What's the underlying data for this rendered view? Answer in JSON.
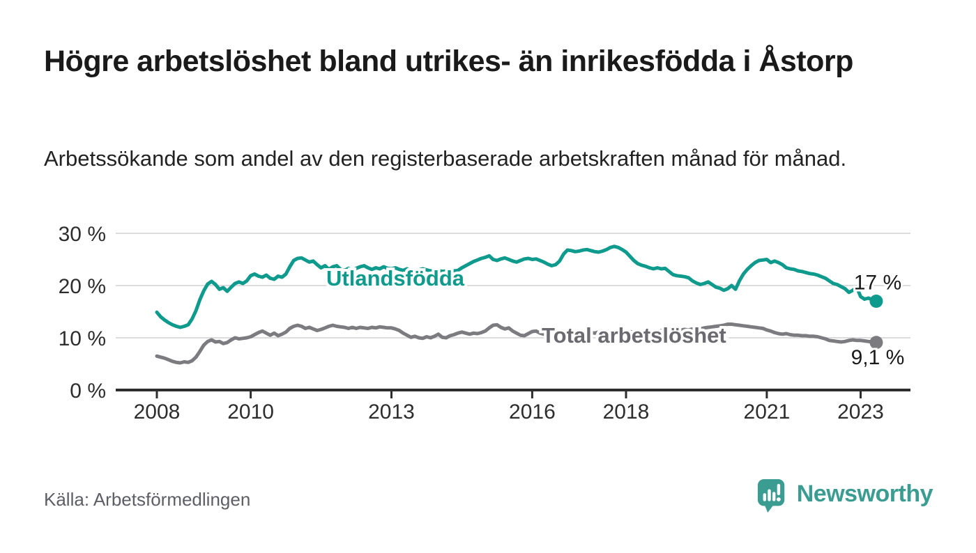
{
  "page": {
    "title": "Högre arbetslöshet bland utrikes- än inrikesfödda i Åstorp",
    "subtitle": "Arbetssökande som andel av den registerbaserade arbetskraften månad för månad.",
    "source": "Källa: Arbetsförmedlingen",
    "brand": "Newsworthy"
  },
  "colors": {
    "teal_series": "#0e9a8c",
    "gray_series": "#7b7b80",
    "gray_label": "#6a6a70",
    "value_label": "#1a1a1a",
    "axis_text": "#2d2d2d",
    "grid_line": "#dcdcdc",
    "axis_line": "#2e2e2e",
    "source_text": "#5d5e66",
    "logo_teal": "#3b9c92",
    "background": "#ffffff"
  },
  "chart_data": {
    "type": "line",
    "unit": "%",
    "x_start": {
      "year": 2008,
      "month": 1
    },
    "x_step_months": 1,
    "x_tick_years": [
      2008,
      2010,
      2013,
      2016,
      2018,
      2021,
      2023
    ],
    "y_ticks": [
      0,
      10,
      20,
      30
    ],
    "y_tick_suffix": " %",
    "ylim": [
      0,
      30
    ],
    "grid": "horizontal",
    "legend_position": "inline-labels",
    "series": [
      {
        "name": "Utlandsfödda",
        "color": "#0e9a8c",
        "end_label": "17 %",
        "end_value": 17.0,
        "values": [
          14.9,
          14.0,
          13.4,
          12.9,
          12.5,
          12.2,
          12.0,
          12.2,
          12.5,
          13.6,
          15.2,
          17.3,
          19.0,
          20.3,
          20.8,
          20.2,
          19.3,
          19.6,
          18.9,
          19.7,
          20.4,
          20.7,
          20.4,
          20.9,
          21.9,
          22.2,
          21.8,
          21.6,
          22.0,
          21.4,
          21.2,
          21.8,
          21.6,
          22.2,
          23.6,
          24.8,
          25.2,
          25.3,
          24.9,
          24.5,
          24.7,
          24.0,
          23.4,
          23.8,
          23.1,
          23.6,
          23.8,
          23.1,
          22.9,
          23.3,
          22.9,
          23.3,
          23.6,
          23.8,
          23.4,
          23.1,
          23.4,
          23.2,
          23.6,
          23.3,
          23.2,
          23.4,
          23.1,
          22.9,
          23.2,
          23.0,
          22.8,
          23.0,
          23.2,
          23.0,
          22.8,
          22.9,
          22.9,
          22.7,
          22.8,
          22.6,
          22.8,
          22.9,
          23.4,
          23.8,
          24.2,
          24.6,
          24.9,
          25.2,
          25.4,
          25.7,
          25.0,
          24.8,
          25.1,
          25.3,
          25.0,
          24.7,
          24.5,
          24.8,
          25.1,
          25.2,
          25.0,
          25.1,
          24.8,
          24.5,
          24.1,
          23.8,
          24.0,
          24.7,
          26.0,
          26.8,
          26.7,
          26.5,
          26.6,
          26.8,
          26.9,
          26.7,
          26.5,
          26.4,
          26.6,
          26.9,
          27.3,
          27.5,
          27.3,
          26.9,
          26.4,
          25.6,
          24.8,
          24.2,
          23.9,
          23.7,
          23.4,
          23.2,
          23.4,
          23.2,
          23.3,
          22.7,
          22.1,
          21.9,
          21.8,
          21.7,
          21.5,
          20.9,
          20.5,
          20.2,
          20.4,
          20.7,
          20.2,
          19.7,
          19.5,
          19.1,
          19.4,
          20.0,
          19.3,
          20.9,
          22.2,
          23.1,
          23.8,
          24.4,
          24.8,
          24.9,
          25.0,
          24.4,
          24.7,
          24.4,
          24.0,
          23.4,
          23.2,
          23.1,
          22.8,
          22.7,
          22.5,
          22.3,
          22.2,
          22.0,
          21.7,
          21.4,
          20.9,
          20.4,
          20.2,
          19.8,
          19.4,
          18.7,
          19.1,
          19.7,
          17.9,
          17.4,
          17.6,
          17.3,
          17.0
        ]
      },
      {
        "name": "Total arbetslöshet",
        "color": "#7b7b80",
        "end_label": "9,1 %",
        "end_value": 9.1,
        "values": [
          6.5,
          6.3,
          6.1,
          5.8,
          5.5,
          5.3,
          5.2,
          5.4,
          5.3,
          5.6,
          6.3,
          7.4,
          8.6,
          9.3,
          9.6,
          9.2,
          9.3,
          8.9,
          9.1,
          9.6,
          10.0,
          9.8,
          9.9,
          10.0,
          10.2,
          10.6,
          11.0,
          11.3,
          10.9,
          10.5,
          10.9,
          10.4,
          10.7,
          11.1,
          11.8,
          12.2,
          12.4,
          12.2,
          11.8,
          12.0,
          11.7,
          11.4,
          11.6,
          11.9,
          12.2,
          12.4,
          12.2,
          12.1,
          12.0,
          11.8,
          12.0,
          11.8,
          12.0,
          11.9,
          11.8,
          12.0,
          11.9,
          12.1,
          12.0,
          11.9,
          11.9,
          11.7,
          11.4,
          10.9,
          10.5,
          10.1,
          10.3,
          10.0,
          9.9,
          10.2,
          10.0,
          10.3,
          10.7,
          10.1,
          10.0,
          10.4,
          10.6,
          10.9,
          11.1,
          10.9,
          10.7,
          10.9,
          10.8,
          11.0,
          11.3,
          11.9,
          12.4,
          12.5,
          12.0,
          11.7,
          11.9,
          11.3,
          10.9,
          10.5,
          10.4,
          10.8,
          11.2,
          11.3,
          10.9,
          10.7,
          10.5,
          10.4,
          10.6,
          10.5,
          10.4,
          10.5,
          10.7,
          10.9,
          10.8,
          10.7,
          10.9,
          11.0,
          10.9,
          11.1,
          11.3,
          11.2,
          11.4,
          11.3,
          11.5,
          11.4,
          11.3,
          11.2,
          11.0,
          10.9,
          11.0,
          11.2,
          11.1,
          11.3,
          11.2,
          11.4,
          11.5,
          11.6,
          11.5,
          11.4,
          11.5,
          11.6,
          11.5,
          11.7,
          11.8,
          11.7,
          11.9,
          12.0,
          12.1,
          12.2,
          12.3,
          12.4,
          12.6,
          12.6,
          12.5,
          12.4,
          12.3,
          12.2,
          12.1,
          12.0,
          11.9,
          11.8,
          11.5,
          11.3,
          11.0,
          10.8,
          10.7,
          10.8,
          10.6,
          10.5,
          10.5,
          10.4,
          10.4,
          10.3,
          10.3,
          10.2,
          10.0,
          9.8,
          9.5,
          9.4,
          9.3,
          9.2,
          9.3,
          9.5,
          9.6,
          9.5,
          9.5,
          9.4,
          9.3,
          9.2,
          9.1
        ]
      }
    ]
  }
}
